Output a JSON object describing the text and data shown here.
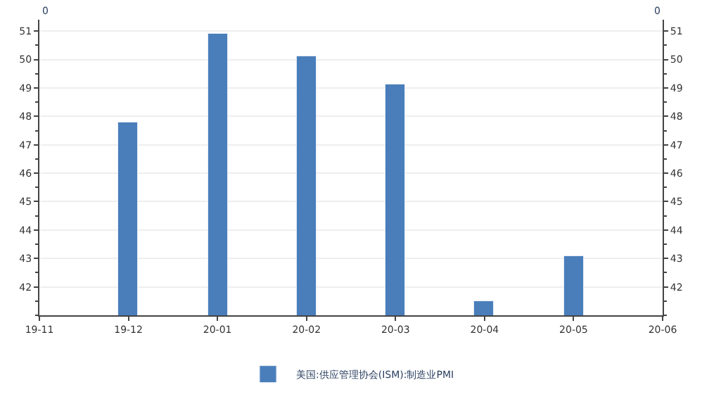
{
  "chart_data": {
    "type": "bar",
    "categories": [
      "19-11",
      "19-12",
      "20-01",
      "20-02",
      "20-03",
      "20-04",
      "20-05",
      "20-06"
    ],
    "series": [
      {
        "name": "美国:供应管理协会(ISM):制造业PMI",
        "color": "#4a7ebb",
        "values": [
          null,
          47.8,
          50.9,
          50.1,
          49.1,
          41.5,
          43.1,
          null
        ]
      }
    ],
    "ylabel": "0",
    "y2label": "0",
    "ylim": [
      41,
      51.4
    ],
    "yticks": [
      42,
      43,
      44,
      45,
      46,
      47,
      48,
      49,
      50,
      51
    ],
    "y2lim": [
      41,
      51.4
    ],
    "y2ticks": [
      42,
      43,
      44,
      45,
      46,
      47,
      48,
      49,
      50,
      51
    ],
    "grid": "y",
    "legend": "bottom"
  }
}
